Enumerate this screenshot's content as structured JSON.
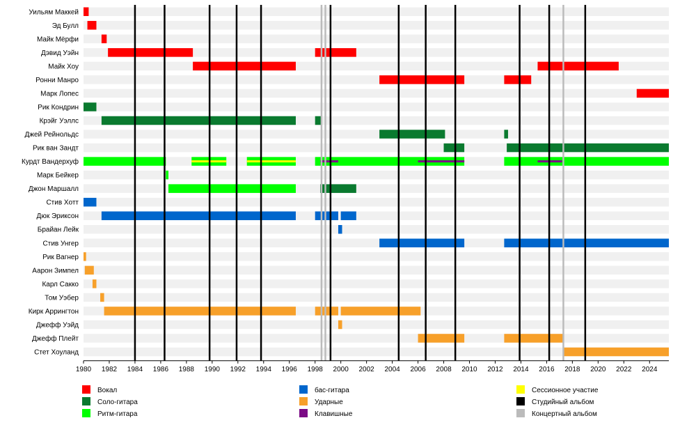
{
  "chart_data": {
    "type": "timeline",
    "x_range": [
      1980,
      2025.5
    ],
    "x_ticks": [
      1980,
      1982,
      1984,
      1986,
      1988,
      1990,
      1992,
      1994,
      1996,
      1998,
      2000,
      2002,
      2004,
      2006,
      2008,
      2010,
      2012,
      2014,
      2016,
      2018,
      2020,
      2022,
      2024
    ],
    "roles": {
      "vocals": {
        "label": "Вокал",
        "color": "#ff0000"
      },
      "lead_guitar": {
        "label": "Соло-гитара",
        "color": "#0a7a2f"
      },
      "rhythm_guitar": {
        "label": "Ритм-гитара",
        "color": "#00ff00"
      },
      "bass": {
        "label": "бас-гитара",
        "color": "#0066cc"
      },
      "drums": {
        "label": "Ударные",
        "color": "#f7a02a"
      },
      "keyboards": {
        "label": "Клавишные",
        "color": "#7b0a85"
      },
      "session": {
        "label": "Сессионное участие",
        "color": "#ffff00"
      },
      "studio_album": {
        "label": "Студийный альбом",
        "color": "#000000"
      },
      "live_album": {
        "label": "Концертный альбом",
        "color": "#bbbbbb"
      }
    },
    "legend_order": [
      [
        "vocals",
        "lead_guitar",
        "rhythm_guitar"
      ],
      [
        "bass",
        "drums",
        "keyboards"
      ],
      [
        "session",
        "studio_album",
        "live_album"
      ]
    ],
    "members": [
      {
        "name": "Уильям Маккей",
        "periods": [
          {
            "role": "vocals",
            "start": 1980.0,
            "end": 1980.4
          }
        ]
      },
      {
        "name": "Эд Булл",
        "periods": [
          {
            "role": "vocals",
            "start": 1980.3,
            "end": 1981.0
          }
        ]
      },
      {
        "name": "Майк Мёрфи",
        "periods": [
          {
            "role": "vocals",
            "start": 1981.4,
            "end": 1981.8
          }
        ]
      },
      {
        "name": "Дэвид Уэйн",
        "periods": [
          {
            "role": "vocals",
            "start": 1981.9,
            "end": 1988.5
          },
          {
            "role": "vocals",
            "start": 1998.0,
            "end": 2001.2
          }
        ]
      },
      {
        "name": "Майк Хоу",
        "periods": [
          {
            "role": "vocals",
            "start": 1988.5,
            "end": 1996.5
          },
          {
            "role": "vocals",
            "start": 2015.3,
            "end": 2021.6
          }
        ]
      },
      {
        "name": "Ронни Манро",
        "periods": [
          {
            "role": "vocals",
            "start": 2003.0,
            "end": 2009.6
          },
          {
            "role": "vocals",
            "start": 2012.7,
            "end": 2014.8
          }
        ]
      },
      {
        "name": "Марк Лопес",
        "periods": [
          {
            "role": "vocals",
            "start": 2023.0,
            "end": 2025.5
          }
        ]
      },
      {
        "name": "Рик Кондрин",
        "periods": [
          {
            "role": "lead_guitar",
            "start": 1980.0,
            "end": 1981.0
          }
        ]
      },
      {
        "name": "Крэйг Уэллс",
        "periods": [
          {
            "role": "lead_guitar",
            "start": 1981.4,
            "end": 1996.5
          },
          {
            "role": "lead_guitar",
            "start": 1998.0,
            "end": 1998.5
          }
        ]
      },
      {
        "name": "Джей Рейнольдс",
        "periods": [
          {
            "role": "lead_guitar",
            "start": 2003.0,
            "end": 2008.1
          },
          {
            "role": "lead_guitar",
            "start": 2012.7,
            "end": 2013.0
          }
        ]
      },
      {
        "name": "Рик ван Зандт",
        "periods": [
          {
            "role": "lead_guitar",
            "start": 2008.0,
            "end": 2009.6
          },
          {
            "role": "lead_guitar",
            "start": 2012.9,
            "end": 2025.5
          }
        ]
      },
      {
        "name": "Курдт Вандерхуф",
        "periods": [
          {
            "role": "rhythm_guitar",
            "start": 1980.0,
            "end": 1986.4
          },
          {
            "role": "rhythm_guitar",
            "start": 1988.4,
            "end": 1991.1
          },
          {
            "role": "rhythm_guitar",
            "start": 1992.7,
            "end": 1996.5
          },
          {
            "role": "rhythm_guitar",
            "start": 1998.0,
            "end": 2009.6
          },
          {
            "role": "rhythm_guitar",
            "start": 2012.7,
            "end": 2025.5
          },
          {
            "role": "session",
            "start": 1988.4,
            "end": 1991.1
          },
          {
            "role": "session",
            "start": 1992.7,
            "end": 1996.5
          },
          {
            "role": "keyboards",
            "start": 1998.4,
            "end": 1999.8
          },
          {
            "role": "keyboards",
            "start": 2006.0,
            "end": 2009.6
          },
          {
            "role": "keyboards",
            "start": 2015.3,
            "end": 2017.2
          }
        ]
      },
      {
        "name": "Марк Бейкер",
        "periods": [
          {
            "role": "rhythm_guitar",
            "start": 1986.4,
            "end": 1986.6
          }
        ]
      },
      {
        "name": "Джон Маршалл",
        "periods": [
          {
            "role": "rhythm_guitar",
            "start": 1986.6,
            "end": 1996.5
          },
          {
            "role": "lead_guitar",
            "start": 1998.4,
            "end": 2001.2
          }
        ]
      },
      {
        "name": "Стив Хотт",
        "periods": [
          {
            "role": "bass",
            "start": 1980.0,
            "end": 1981.0
          }
        ]
      },
      {
        "name": "Дюк Эриксон",
        "periods": [
          {
            "role": "bass",
            "start": 1981.4,
            "end": 1996.5
          },
          {
            "role": "bass",
            "start": 1998.0,
            "end": 1999.8
          },
          {
            "role": "bass",
            "start": 2000.0,
            "end": 2001.2
          }
        ]
      },
      {
        "name": "Брайан Лейк",
        "periods": [
          {
            "role": "bass",
            "start": 1999.8,
            "end": 2000.1
          }
        ]
      },
      {
        "name": "Стив Унгер",
        "periods": [
          {
            "role": "bass",
            "start": 2003.0,
            "end": 2009.6
          },
          {
            "role": "bass",
            "start": 2012.7,
            "end": 2025.5
          }
        ]
      },
      {
        "name": "Рик Вагнер",
        "periods": [
          {
            "role": "drums",
            "start": 1980.0,
            "end": 1980.2
          }
        ]
      },
      {
        "name": "Аарон Зимпел",
        "periods": [
          {
            "role": "drums",
            "start": 1980.1,
            "end": 1980.8
          }
        ]
      },
      {
        "name": "Карл Сакко",
        "periods": [
          {
            "role": "drums",
            "start": 1980.7,
            "end": 1981.0
          }
        ]
      },
      {
        "name": "Том Уэбер",
        "periods": [
          {
            "role": "drums",
            "start": 1981.3,
            "end": 1981.6
          }
        ]
      },
      {
        "name": "Кирк Аррингтон",
        "periods": [
          {
            "role": "drums",
            "start": 1981.6,
            "end": 1996.5
          },
          {
            "role": "drums",
            "start": 1998.0,
            "end": 1999.8
          },
          {
            "role": "drums",
            "start": 2000.0,
            "end": 2006.2
          }
        ]
      },
      {
        "name": "Джефф Уэйд",
        "periods": [
          {
            "role": "drums",
            "start": 1999.8,
            "end": 2000.1
          }
        ]
      },
      {
        "name": "Джефф Плейт",
        "periods": [
          {
            "role": "drums",
            "start": 2006.0,
            "end": 2009.6
          },
          {
            "role": "drums",
            "start": 2012.7,
            "end": 2017.3
          }
        ]
      },
      {
        "name": "Стет Хоуланд",
        "periods": [
          {
            "role": "drums",
            "start": 2017.3,
            "end": 2025.5
          }
        ]
      }
    ],
    "studio_albums": [
      1984.0,
      1986.3,
      1989.8,
      1991.9,
      1993.8,
      1999.2,
      2004.5,
      2006.6,
      2008.9,
      2013.9,
      2016.2,
      2019.0
    ],
    "live_albums": [
      1998.5,
      1998.8,
      2017.3
    ]
  }
}
